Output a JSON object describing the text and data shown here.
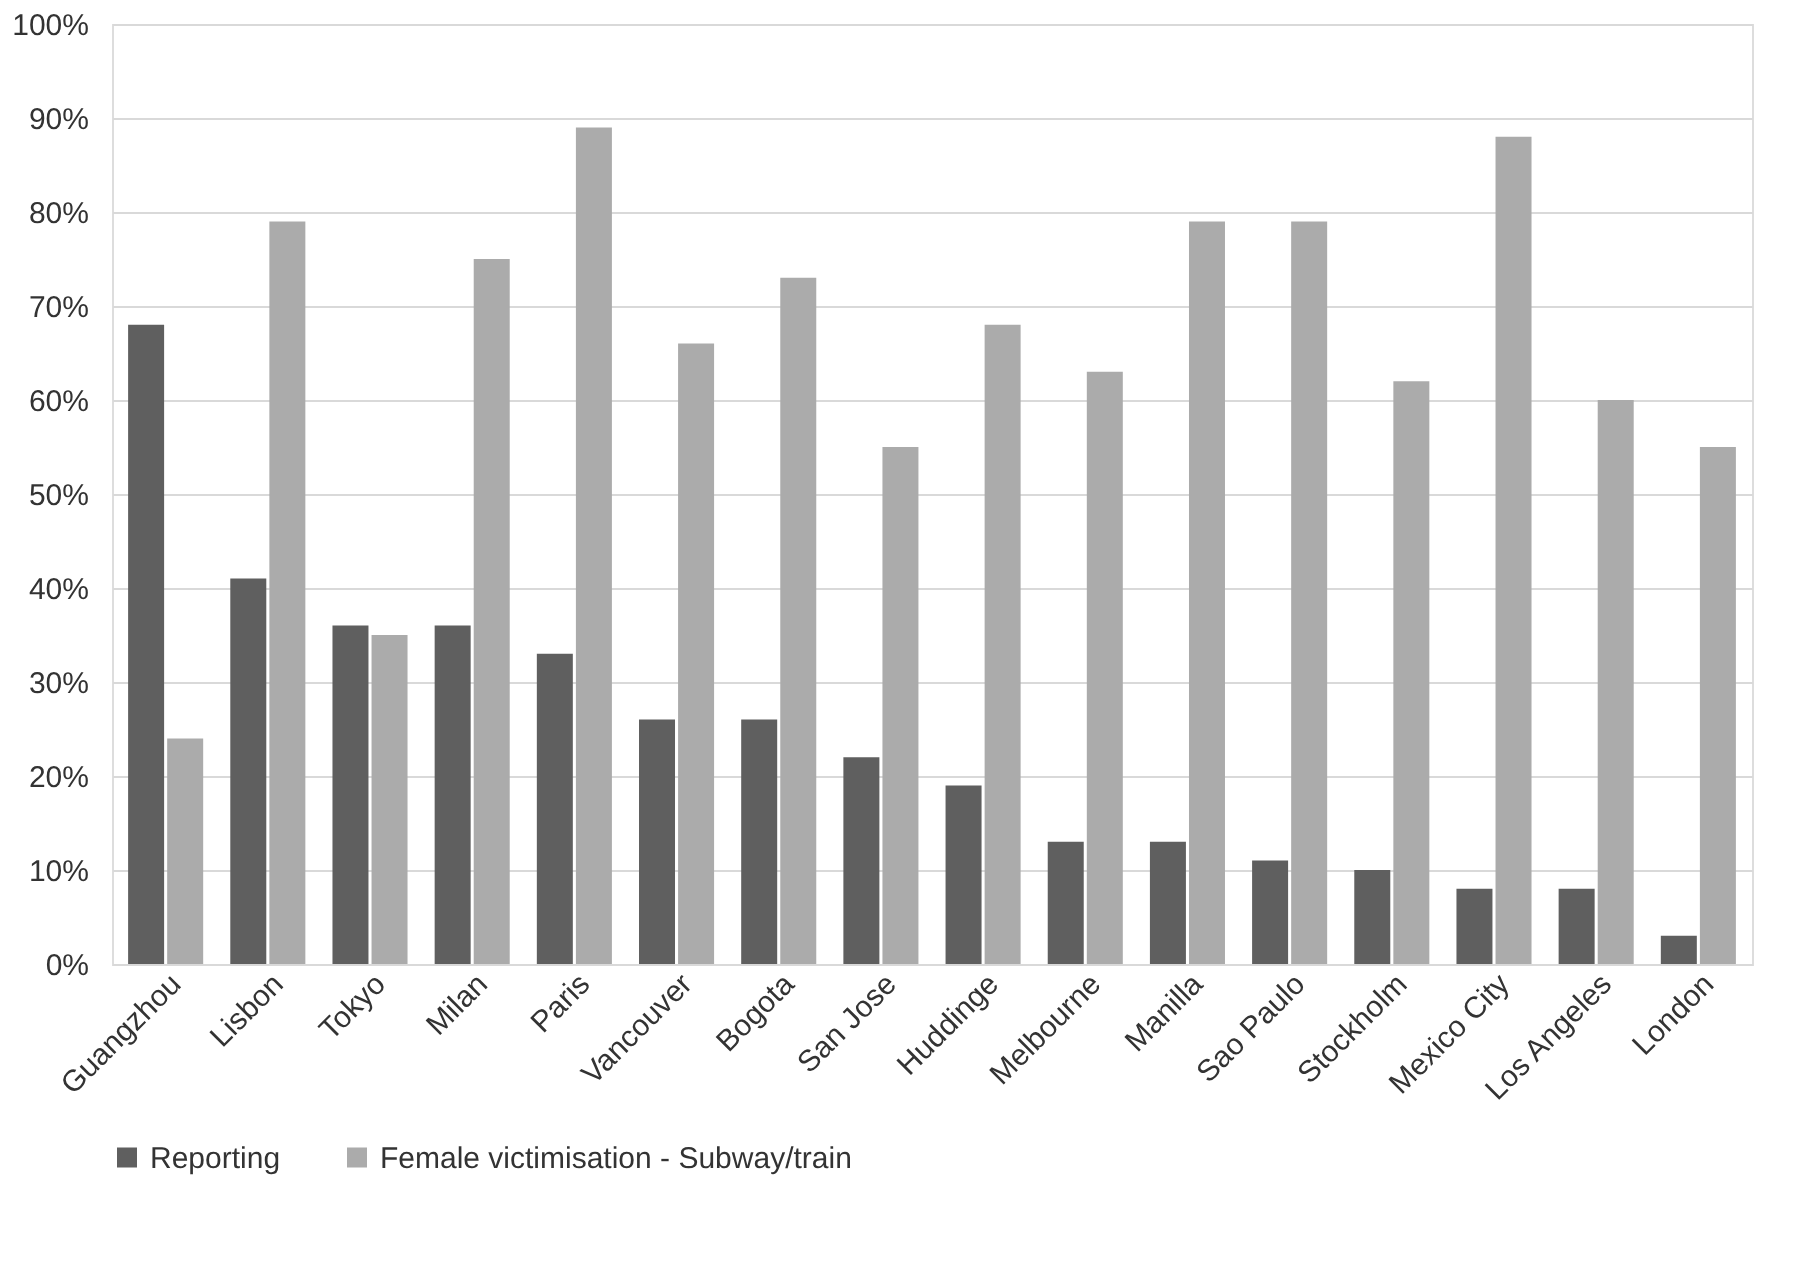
{
  "chart_data": {
    "type": "bar",
    "categories": [
      "Guangzhou",
      "Lisbon",
      "Tokyo",
      "Milan",
      "Paris",
      "Vancouver",
      "Bogota",
      "San Jose",
      "Huddinge",
      "Melbourne",
      "Manilla",
      "Sao Paulo",
      "Stockholm",
      "Mexico City",
      "Los Angeles",
      "London"
    ],
    "series": [
      {
        "name": "Reporting",
        "color": "#5f5f5f",
        "values": [
          68,
          41,
          36,
          36,
          33,
          26,
          26,
          22,
          19,
          13,
          13,
          11,
          10,
          8,
          8,
          3
        ]
      },
      {
        "name": "Female victimisation - Subway/train",
        "color": "#ababab",
        "values": [
          24,
          79,
          35,
          75,
          89,
          66,
          73,
          55,
          68,
          63,
          79,
          79,
          62,
          88,
          60,
          55
        ]
      }
    ],
    "ylim": [
      0,
      100
    ],
    "yticks": [
      {
        "value": 0,
        "label": "0%"
      },
      {
        "value": 10,
        "label": "10%"
      },
      {
        "value": 20,
        "label": "20%"
      },
      {
        "value": 30,
        "label": "30%"
      },
      {
        "value": 40,
        "label": "40%"
      },
      {
        "value": 50,
        "label": "50%"
      },
      {
        "value": 60,
        "label": "60%"
      },
      {
        "value": 70,
        "label": "70%"
      },
      {
        "value": 80,
        "label": "80%"
      },
      {
        "value": 90,
        "label": "90%"
      },
      {
        "value": 100,
        "label": "100%"
      }
    ],
    "grid": "y",
    "legend": "bottom"
  }
}
